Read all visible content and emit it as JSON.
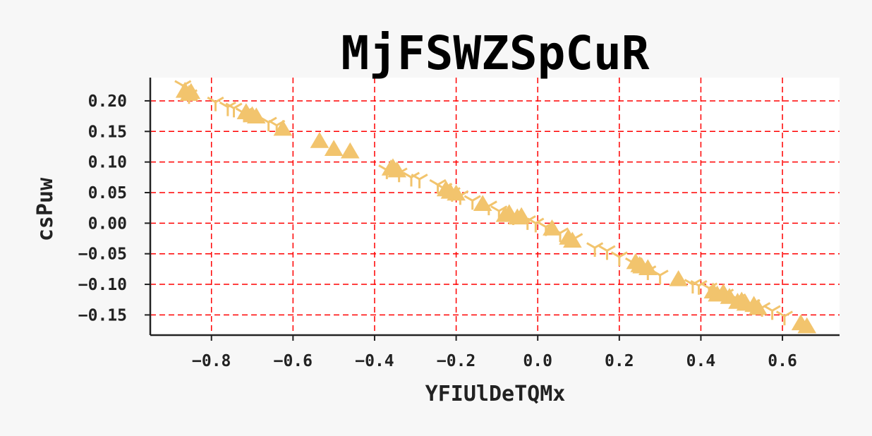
{
  "chart_data": {
    "type": "scatter",
    "title": "MjFSWZSpCuR",
    "xlabel": "YFIUlDeTQMx",
    "ylabel": "csPuw",
    "xlim": [
      -0.95,
      0.74
    ],
    "ylim": [
      -0.183,
      0.238
    ],
    "xticks": [
      -0.8,
      -0.6,
      -0.4,
      -0.2,
      0.0,
      0.2,
      0.4,
      0.6
    ],
    "xtick_labels": [
      "−0.8",
      "−0.6",
      "−0.4",
      "−0.2",
      "0.0",
      "0.2",
      "0.4",
      "0.6"
    ],
    "yticks": [
      0.2,
      0.15,
      0.1,
      0.05,
      0.0,
      -0.05,
      -0.1,
      -0.15
    ],
    "ytick_labels": [
      "0.20",
      "0.15",
      "0.10",
      "0.05",
      "0.00",
      "−0.05",
      "−0.10",
      "−0.15"
    ],
    "grid": true,
    "colors": {
      "marker": "#f2c46d",
      "grid": "#ff0000",
      "plot_bg": "#ffffff",
      "page_bg": "#f7f7f7"
    },
    "series": [
      {
        "marker": "triangle",
        "x": [
          -0.865,
          -0.855,
          -0.85,
          -0.715,
          -0.7,
          -0.69,
          -0.625,
          -0.535,
          -0.5,
          -0.46,
          -0.36,
          -0.355,
          -0.345,
          -0.225,
          -0.215,
          -0.2,
          -0.135,
          -0.08,
          -0.07,
          -0.05,
          -0.04,
          0.035,
          0.075,
          0.085,
          0.24,
          0.25,
          0.255,
          0.27,
          0.345,
          0.43,
          0.44,
          0.455,
          0.47,
          0.49,
          0.5,
          0.51,
          0.53,
          0.54,
          0.645,
          0.66
        ],
        "y": [
          0.215,
          0.21,
          0.213,
          0.18,
          0.175,
          0.173,
          0.153,
          0.133,
          0.12,
          0.116,
          0.088,
          0.09,
          0.085,
          0.054,
          0.05,
          0.047,
          0.03,
          0.012,
          0.015,
          0.008,
          0.01,
          -0.01,
          -0.025,
          -0.03,
          -0.065,
          -0.07,
          -0.072,
          -0.075,
          -0.093,
          -0.113,
          -0.118,
          -0.115,
          -0.122,
          -0.13,
          -0.128,
          -0.133,
          -0.135,
          -0.14,
          -0.165,
          -0.17
        ]
      },
      {
        "marker": "tri_down",
        "x": [
          -0.87,
          -0.855,
          -0.79,
          -0.76,
          -0.745,
          -0.72,
          -0.66,
          -0.64,
          -0.37,
          -0.34,
          -0.31,
          -0.29,
          -0.245,
          -0.23,
          -0.21,
          -0.19,
          -0.16,
          -0.12,
          -0.095,
          -0.06,
          -0.025,
          -0.005,
          0.02,
          0.055,
          0.09,
          0.14,
          0.17,
          0.2,
          0.235,
          0.27,
          0.3,
          0.38,
          0.395,
          0.42,
          0.46,
          0.49,
          0.525,
          0.55,
          0.575,
          0.605
        ],
        "y": [
          0.225,
          0.21,
          0.198,
          0.19,
          0.188,
          0.18,
          0.165,
          0.16,
          0.087,
          0.082,
          0.075,
          0.072,
          0.063,
          0.057,
          0.05,
          0.045,
          0.037,
          0.028,
          0.02,
          0.012,
          0.004,
          0.0,
          -0.006,
          -0.016,
          -0.025,
          -0.04,
          -0.045,
          -0.055,
          -0.065,
          -0.078,
          -0.085,
          -0.1,
          -0.102,
          -0.106,
          -0.116,
          -0.124,
          -0.133,
          -0.138,
          -0.143,
          -0.152
        ]
      }
    ]
  }
}
